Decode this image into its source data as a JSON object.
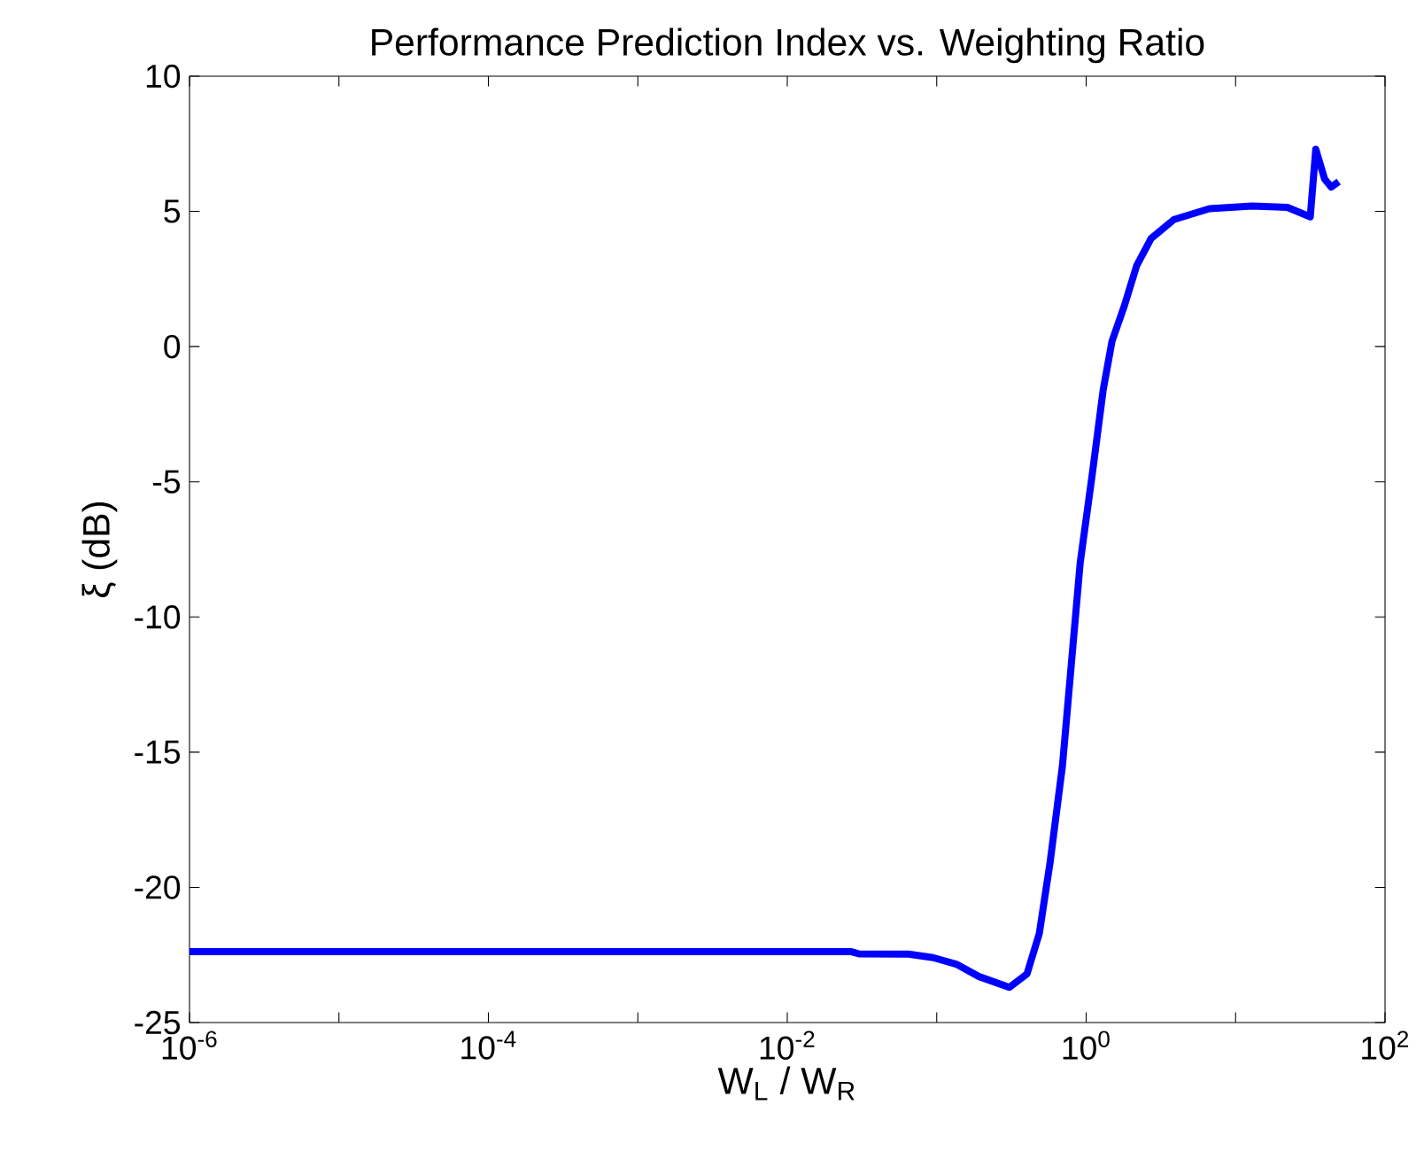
{
  "chart_data": {
    "type": "line",
    "title": "Performance Prediction Index vs. Weighting Ratio",
    "xlabel": "W$_{L}$ / W$_{R}$",
    "ylabel": "ξ (dB)",
    "log": "x",
    "xlim": [
      1e-06,
      100
    ],
    "ylim": [
      -25,
      10
    ],
    "xticks": [
      {
        "value": 1e-06,
        "label": "10$^{-6}$"
      },
      {
        "value": 1e-05,
        "label": null
      },
      {
        "value": 0.0001,
        "label": "10$^{-4}$"
      },
      {
        "value": 0.001,
        "label": null
      },
      {
        "value": 0.01,
        "label": "10$^{-2}$"
      },
      {
        "value": 0.1,
        "label": null
      },
      {
        "value": 1,
        "label": "10$^{0}$"
      },
      {
        "value": 10,
        "label": null
      },
      {
        "value": 100,
        "label": "10$^{2}$"
      }
    ],
    "yticks": [
      -25,
      -20,
      -15,
      -10,
      -5,
      0,
      5,
      10
    ],
    "series": [
      {
        "color": "#0000ff",
        "x": [
          1e-06,
          0.0269,
          0.0302,
          0.0646,
          0.0946,
          0.135,
          0.192,
          0.306,
          0.402,
          0.486,
          0.573,
          0.694,
          0.912,
          1.1,
          1.3,
          1.49,
          1.8,
          2.18,
          2.72,
          3.87,
          6.68,
          12.9,
          22.2,
          31.6,
          34.4,
          39.4,
          43.7,
          49.0
        ],
        "values": [
          -22.38,
          -22.38,
          -22.46,
          -22.47,
          -22.6,
          -22.84,
          -23.3,
          -23.7,
          -23.2,
          -21.7,
          -19.1,
          -15.5,
          -8.0,
          -4.7,
          -1.6,
          0.2,
          1.5,
          3.0,
          4.0,
          4.7,
          5.1,
          5.2,
          5.15,
          4.8,
          7.3,
          6.2,
          5.9,
          6.1
        ]
      }
    ]
  }
}
